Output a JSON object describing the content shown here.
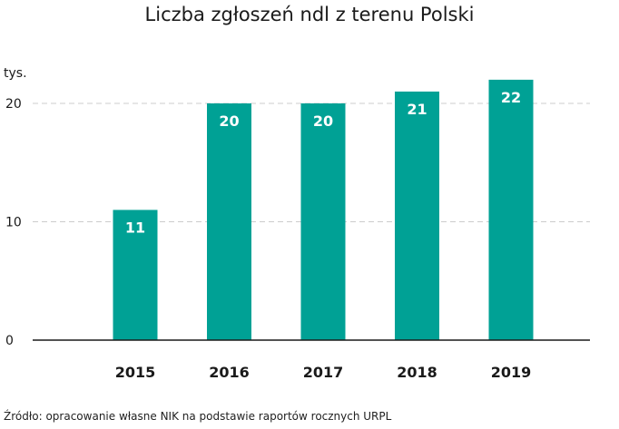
{
  "chart_data": {
    "type": "bar",
    "title": "Liczba zgłoszeń ndl z terenu Polski",
    "unit_label": "tys.",
    "categories": [
      "2015",
      "2016",
      "2017",
      "2018",
      "2019"
    ],
    "values": [
      11,
      20,
      20,
      21,
      22
    ],
    "data_labels": [
      "11",
      "20",
      "20",
      "21",
      "22"
    ],
    "y_ticks": [
      "0",
      "10",
      "20"
    ],
    "ylim": [
      0,
      24
    ],
    "grid": true,
    "bar_color": "#00a195",
    "grid_color": "#cccccc"
  },
  "source": "Źródło: opracowanie własne NIK na podstawie raportów rocznych URPL"
}
